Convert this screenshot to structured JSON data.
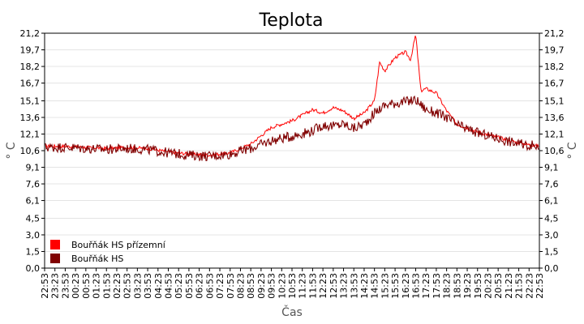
{
  "chart_data": {
    "type": "line",
    "title": "Teplota",
    "xlabel": "Čas",
    "ylabel": "° C",
    "ylim": [
      0,
      21.2
    ],
    "y_ticks": [
      "0,0",
      "1,5",
      "3,0",
      "4,5",
      "6,1",
      "7,6",
      "9,1",
      "10,6",
      "12,1",
      "13,6",
      "15,1",
      "16,7",
      "18,2",
      "19,7",
      "21,2"
    ],
    "y_tick_values": [
      0,
      1.5,
      3.0,
      4.5,
      6.1,
      7.6,
      9.1,
      10.6,
      12.1,
      13.6,
      15.1,
      16.7,
      18.2,
      19.7,
      21.2
    ],
    "x_ticks": [
      "22:53",
      "23:23",
      "23:53",
      "00:23",
      "00:53",
      "01:23",
      "01:53",
      "02:23",
      "02:53",
      "03:23",
      "03:53",
      "04:23",
      "04:53",
      "05:23",
      "05:53",
      "06:23",
      "06:53",
      "07:23",
      "07:53",
      "08:23",
      "08:53",
      "09:23",
      "09:53",
      "10:23",
      "10:53",
      "11:23",
      "11:53",
      "12:23",
      "12:53",
      "13:23",
      "13:53",
      "14:23",
      "14:53",
      "15:23",
      "15:53",
      "16:23",
      "16:53",
      "17:23",
      "17:53",
      "18:23",
      "18:53",
      "19:23",
      "19:53",
      "20:23",
      "20:53",
      "21:23",
      "21:53",
      "22:23",
      "22:53"
    ],
    "grid": true,
    "legend_position": "bottom-left",
    "series": [
      {
        "name": "Bouřňák HS přízemní",
        "color": "#ff0000",
        "x": [
          "22:53",
          "23:53",
          "00:53",
          "01:53",
          "02:53",
          "03:53",
          "04:53",
          "05:53",
          "06:53",
          "07:53",
          "08:53",
          "09:53",
          "10:53",
          "11:53",
          "12:23",
          "12:53",
          "13:23",
          "13:53",
          "14:23",
          "14:53",
          "15:08",
          "15:23",
          "15:53",
          "16:23",
          "16:38",
          "16:53",
          "17:08",
          "17:23",
          "17:53",
          "18:23",
          "18:53",
          "19:53",
          "20:53",
          "21:53",
          "22:53"
        ],
        "values": [
          11.8,
          11.0,
          10.9,
          10.8,
          10.9,
          10.8,
          10.5,
          10.3,
          10.2,
          10.4,
          11.2,
          12.7,
          13.3,
          14.3,
          14.0,
          14.5,
          14.2,
          13.5,
          14.0,
          15.1,
          18.6,
          17.8,
          19.0,
          19.5,
          18.8,
          21.1,
          16.0,
          16.2,
          15.8,
          14.2,
          13.0,
          12.3,
          11.8,
          11.3,
          11.0
        ]
      },
      {
        "name": "Bouřňák HS",
        "color": "#800000",
        "x": [
          "22:53",
          "23:53",
          "00:53",
          "01:53",
          "02:53",
          "03:53",
          "04:53",
          "05:53",
          "06:53",
          "07:53",
          "08:53",
          "09:53",
          "10:53",
          "11:53",
          "12:23",
          "12:53",
          "13:23",
          "13:53",
          "14:23",
          "14:53",
          "15:23",
          "15:53",
          "16:23",
          "16:53",
          "17:23",
          "17:53",
          "18:23",
          "18:53",
          "19:53",
          "20:53",
          "21:53",
          "22:53"
        ],
        "values": [
          11.8,
          10.9,
          10.8,
          10.7,
          10.8,
          10.7,
          10.4,
          10.2,
          10.1,
          10.3,
          10.8,
          11.5,
          11.9,
          12.4,
          12.9,
          12.8,
          13.0,
          12.6,
          13.0,
          14.0,
          14.7,
          14.9,
          15.0,
          15.2,
          14.3,
          14.0,
          13.6,
          12.9,
          12.2,
          11.7,
          11.2,
          11.0
        ]
      }
    ]
  }
}
